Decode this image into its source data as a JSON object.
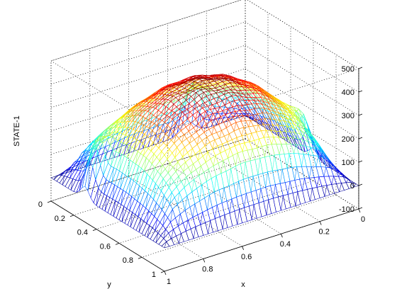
{
  "chart_data": {
    "type": "surface-mesh",
    "title": "",
    "xlabel": "x",
    "ylabel": "y",
    "zlabel": "STATE-1",
    "xlim": [
      0,
      1
    ],
    "ylim": [
      0,
      1
    ],
    "zlim": [
      -100,
      500
    ],
    "x_ticks": [
      "0",
      "0.2",
      "0.4",
      "0.6",
      "0.8",
      "1"
    ],
    "y_ticks": [
      "0",
      "0.2",
      "0.4",
      "0.6",
      "0.8",
      "1"
    ],
    "z_ticks": [
      "-100",
      "0",
      "100",
      "200",
      "300",
      "400",
      "500"
    ],
    "grid": true,
    "colormap": "jet",
    "surface": {
      "peak_value": 420,
      "peak_at": [
        0.5,
        0.5
      ],
      "edge_value": 0,
      "local_spikes": [
        {
          "x": 0.95,
          "y": 0.3,
          "z": 320
        },
        {
          "x": 0.3,
          "y": 0.05,
          "z": 330
        },
        {
          "x": 0.05,
          "y": 0.6,
          "z": 230
        }
      ]
    }
  }
}
